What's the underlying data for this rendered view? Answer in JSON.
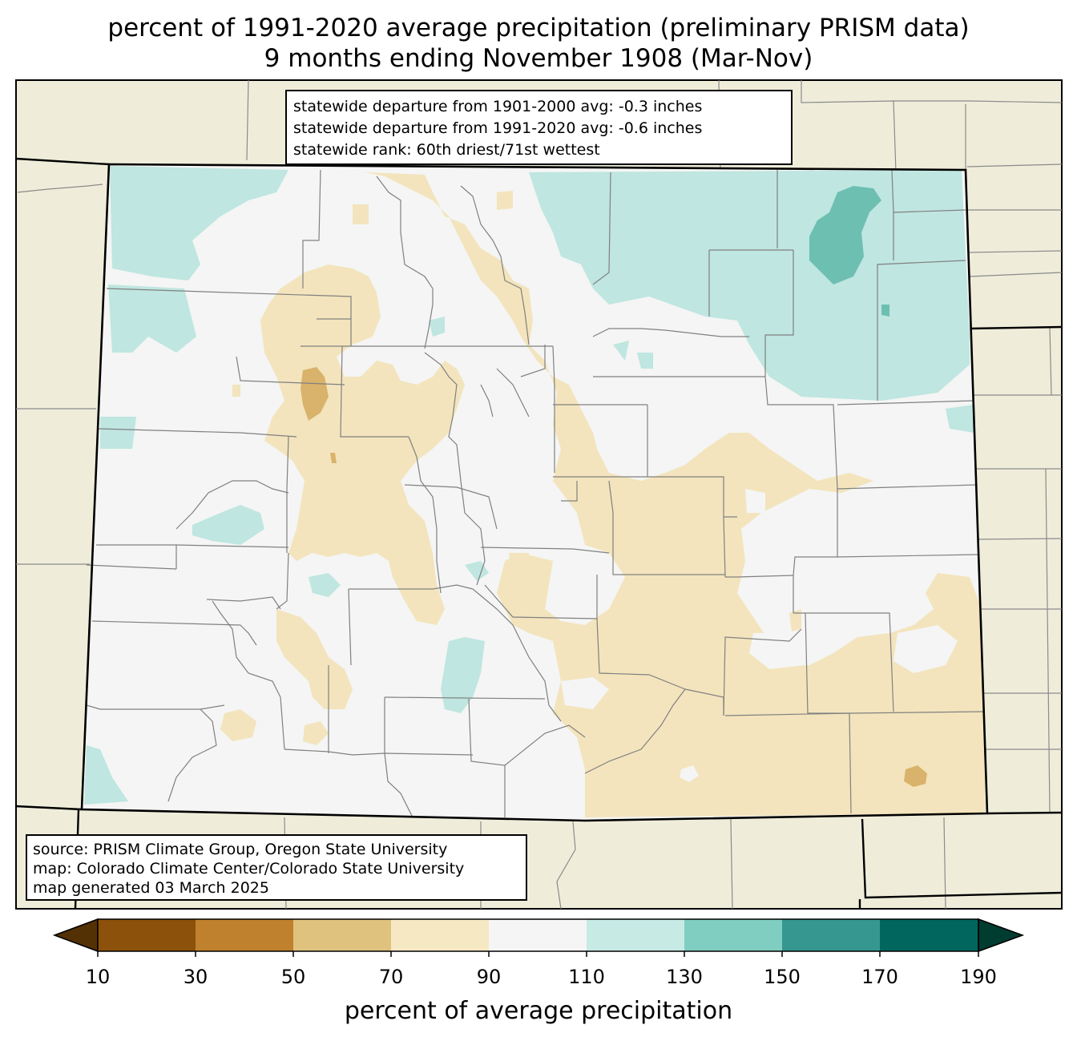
{
  "header": {
    "title_line1": "percent of 1991-2020 average precipitation (preliminary PRISM data)",
    "title_line2": "9 months ending November 1908 (Mar-Nov)"
  },
  "stats": {
    "line1": "statewide departure from 1901-2000 avg: -0.3 inches",
    "line2": "statewide departure from 1991-2020 avg: -0.6 inches",
    "line3": "statewide rank: 60th driest/71st wettest"
  },
  "source": {
    "line1": "source: PRISM Climate Group, Oregon State University",
    "line2": "map: Colorado Climate Center/Colorado State University",
    "line3": "map generated 03 March 2025"
  },
  "colorbar": {
    "title": "percent of average precipitation",
    "ticks": [
      "10",
      "30",
      "50",
      "70",
      "90",
      "110",
      "130",
      "150",
      "170",
      "190"
    ],
    "colors": [
      "#543005",
      "#8c510a",
      "#bf812d",
      "#dfc27d",
      "#f6e8c3",
      "#f5f5f5",
      "#c7eae5",
      "#80cdc1",
      "#35978f",
      "#01665e",
      "#003c30"
    ]
  },
  "legend_colors": {
    "background": "#efedda",
    "state_fill": "#f4f5f4",
    "dry_light": "#f3e4bd",
    "dry_medium": "#d9b36b",
    "wet_light": "#bfe6e0",
    "wet_medium": "#6dbfb2"
  }
}
